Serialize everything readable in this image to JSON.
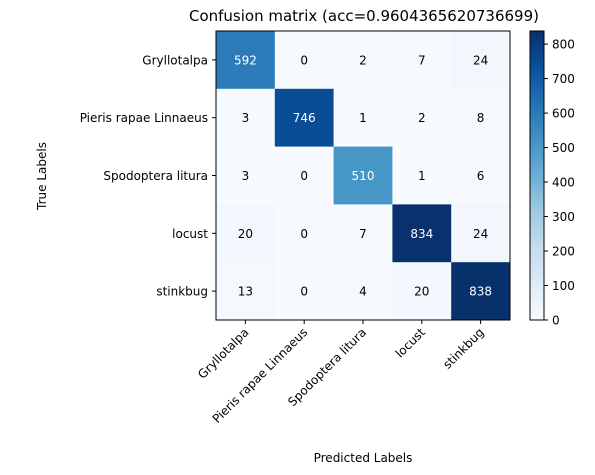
{
  "chart_data": {
    "type": "heatmap",
    "title": "Confusion matrix (acc=0.9604365620736699)",
    "xlabel": "Predicted Labels",
    "ylabel": "True Labels",
    "x_categories": [
      "Gryllotalpa",
      "Pieris rapae Linnaeus",
      "Spodoptera litura",
      "locust",
      "stinkbug"
    ],
    "y_categories": [
      "Gryllotalpa",
      "Pieris rapae Linnaeus",
      "Spodoptera litura",
      "locust",
      "stinkbug"
    ],
    "matrix": [
      [
        592,
        0,
        2,
        7,
        24
      ],
      [
        3,
        746,
        1,
        2,
        8
      ],
      [
        3,
        0,
        510,
        1,
        6
      ],
      [
        20,
        0,
        7,
        834,
        24
      ],
      [
        13,
        0,
        4,
        20,
        838
      ]
    ],
    "colormap": "Blues",
    "vmin": 0,
    "vmax": 838,
    "colorbar_ticks": [
      "0",
      "100",
      "200",
      "300",
      "400",
      "500",
      "600",
      "700",
      "800"
    ]
  }
}
